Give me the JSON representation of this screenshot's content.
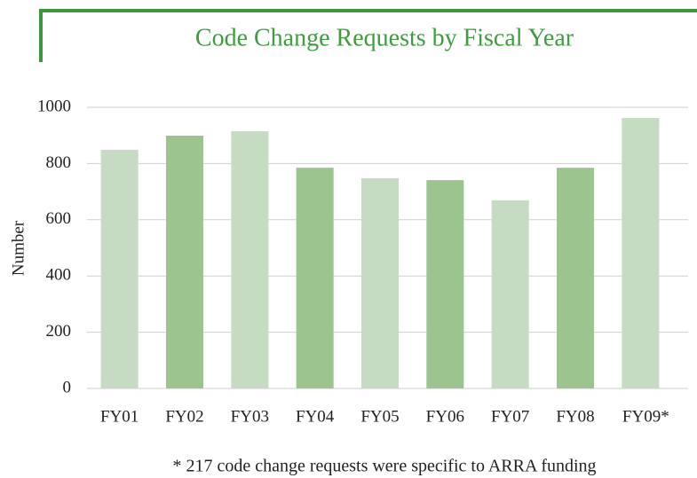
{
  "chart_data": {
    "type": "bar",
    "title": "Code Change Requests by Fiscal Year",
    "y_label": "Number",
    "categories": [
      "FY01",
      "FY02",
      "FY03",
      "FY04",
      "FY05",
      "FY06",
      "FY07",
      "FY08",
      "FY09*"
    ],
    "values": [
      849,
      899,
      915,
      785,
      748,
      741,
      669,
      785,
      962
    ],
    "colors": [
      "#c5dcc2",
      "#9bc48f",
      "#c5dcc2",
      "#9bc48f",
      "#c5dcc2",
      "#9bc48f",
      "#c5dcc2",
      "#9bc48f",
      "#c5dcc2"
    ],
    "ylim": [
      0,
      1000
    ],
    "yticks": [
      0,
      200,
      400,
      600,
      800,
      1000
    ],
    "grid": true,
    "footnote": "* 217 code change requests were specific to ARRA funding"
  }
}
